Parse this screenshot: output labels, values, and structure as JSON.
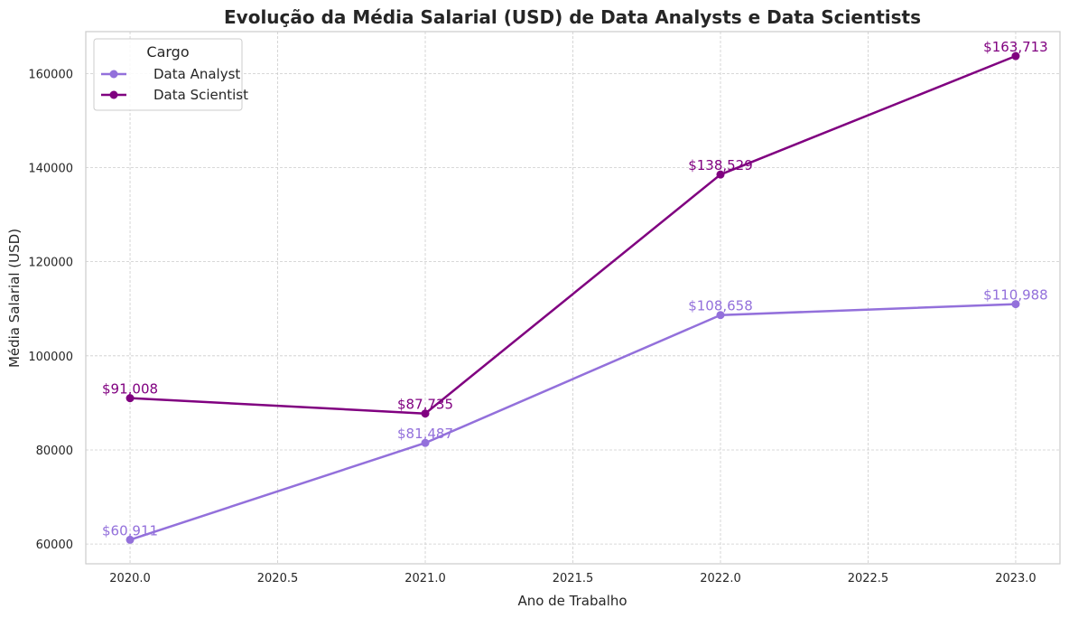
{
  "chart_data": {
    "type": "line",
    "title": "Evolução da Média Salarial (USD) de Data Analysts e Data Scientists",
    "xlabel": "Ano de Trabalho",
    "ylabel": "Média Salarial (USD)",
    "x": [
      2020,
      2021,
      2022,
      2023
    ],
    "xlim": [
      2019.85,
      2023.15
    ],
    "ylim": [
      55800,
      168900
    ],
    "xticks": [
      2020.0,
      2020.5,
      2021.0,
      2021.5,
      2022.0,
      2022.5,
      2023.0
    ],
    "xtick_labels": [
      "2020.0",
      "2020.5",
      "2021.0",
      "2021.5",
      "2022.0",
      "2022.5",
      "2023.0"
    ],
    "yticks": [
      60000,
      80000,
      100000,
      120000,
      140000,
      160000
    ],
    "ytick_labels": [
      "60000",
      "80000",
      "100000",
      "120000",
      "140000",
      "160000"
    ],
    "grid": true,
    "legend": {
      "title": "Cargo",
      "position": "top-left"
    },
    "series": [
      {
        "name": "Data Analyst",
        "color": "#9370db",
        "values": [
          60911,
          81487,
          108658,
          110988
        ],
        "labels": [
          "$60,911",
          "$81,487",
          "$108,658",
          "$110,988"
        ]
      },
      {
        "name": "Data Scientist",
        "color": "#800080",
        "values": [
          91008,
          87735,
          138529,
          163713
        ],
        "labels": [
          "$91,008",
          "$87,735",
          "$138,529",
          "$163,713"
        ]
      }
    ]
  }
}
